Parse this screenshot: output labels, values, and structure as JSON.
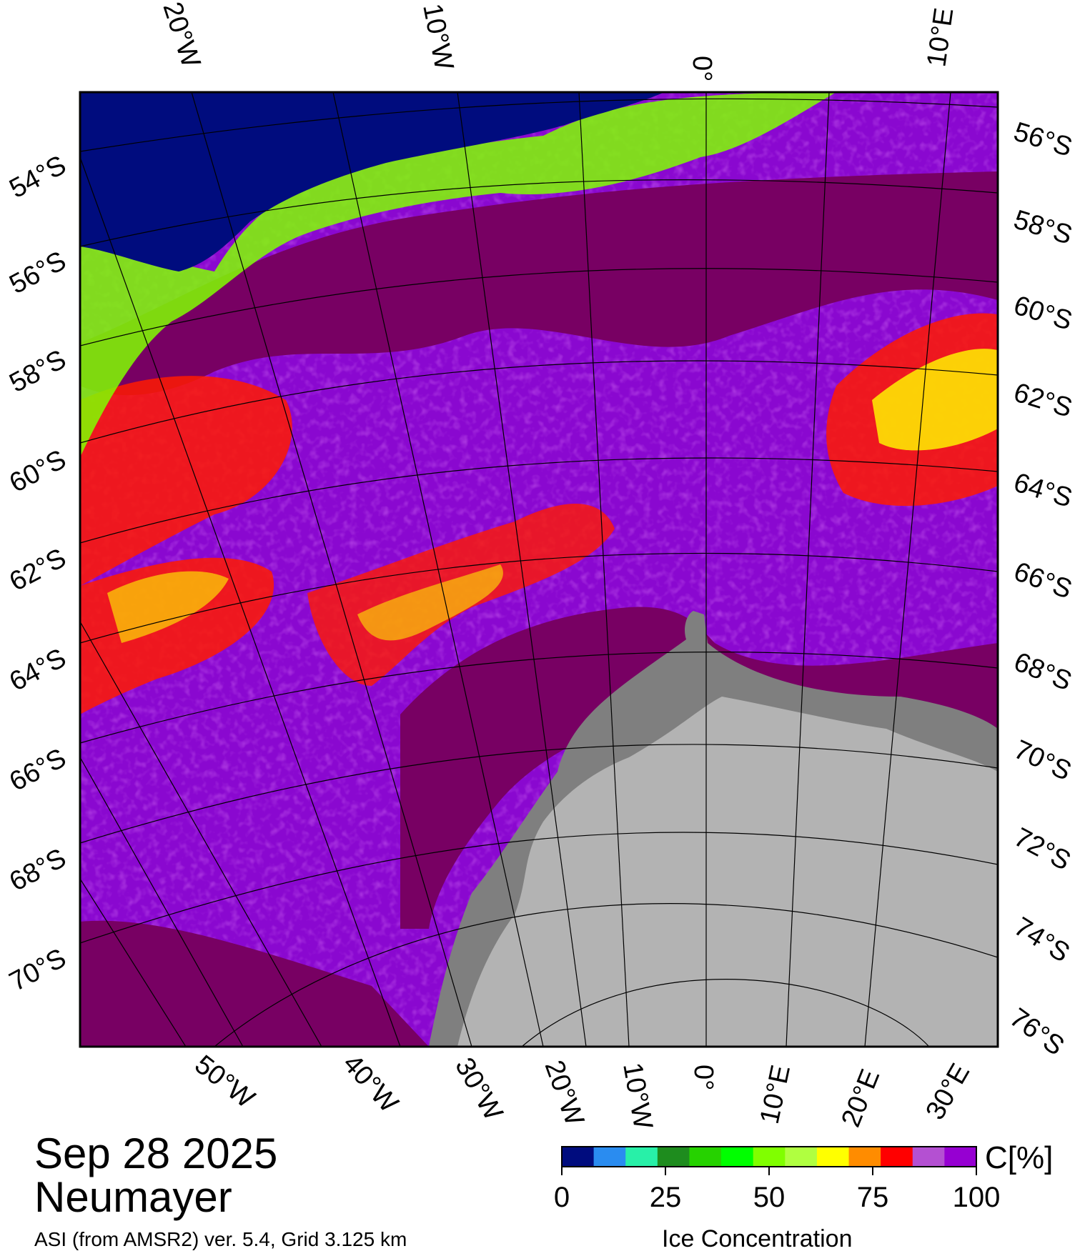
{
  "title": {
    "date": "Sep 28 2025",
    "station": "Neumayer",
    "product": "ASI (from AMSR2) ver. 5.4,  Grid 3.125 km"
  },
  "map": {
    "type": "polar stereographic sea-ice concentration map",
    "region": "Weddell Sea / Neumayer",
    "top_lon_labels": [
      "20°W",
      "10°W",
      "0°",
      "10°E"
    ],
    "bottom_lon_labels": [
      "50°W",
      "40°W",
      "30°W",
      "20°W",
      "10°W",
      "0°",
      "10°E",
      "20°E",
      "30°E"
    ],
    "left_lat_labels": [
      "54°S",
      "56°S",
      "58°S",
      "60°S",
      "62°S",
      "64°S",
      "66°S",
      "68°S",
      "70°S"
    ],
    "right_lat_labels": [
      "56°S",
      "58°S",
      "60°S",
      "62°S",
      "64°S",
      "66°S",
      "68°S",
      "70°S",
      "72°S",
      "74°S",
      "76°S"
    ],
    "colors": {
      "open_water": "#000c7e",
      "high_ice": "#780063",
      "mid_ice": "#8a08d0",
      "land_ice": "#b3b3b3",
      "ice_shelf": "#7f7f7f"
    }
  },
  "colorbar": {
    "label": "Ice Concentration",
    "unit": "C[%]",
    "ticks": [
      "0",
      "25",
      "50",
      "75",
      "100"
    ],
    "colors": [
      "#000c7e",
      "#2a8cf0",
      "#28f0a8",
      "#1e8c1e",
      "#26d200",
      "#00ff00",
      "#80ff00",
      "#b0ff40",
      "#ffff00",
      "#ff8c00",
      "#ff0000",
      "#b450d2",
      "#9600d2"
    ]
  }
}
